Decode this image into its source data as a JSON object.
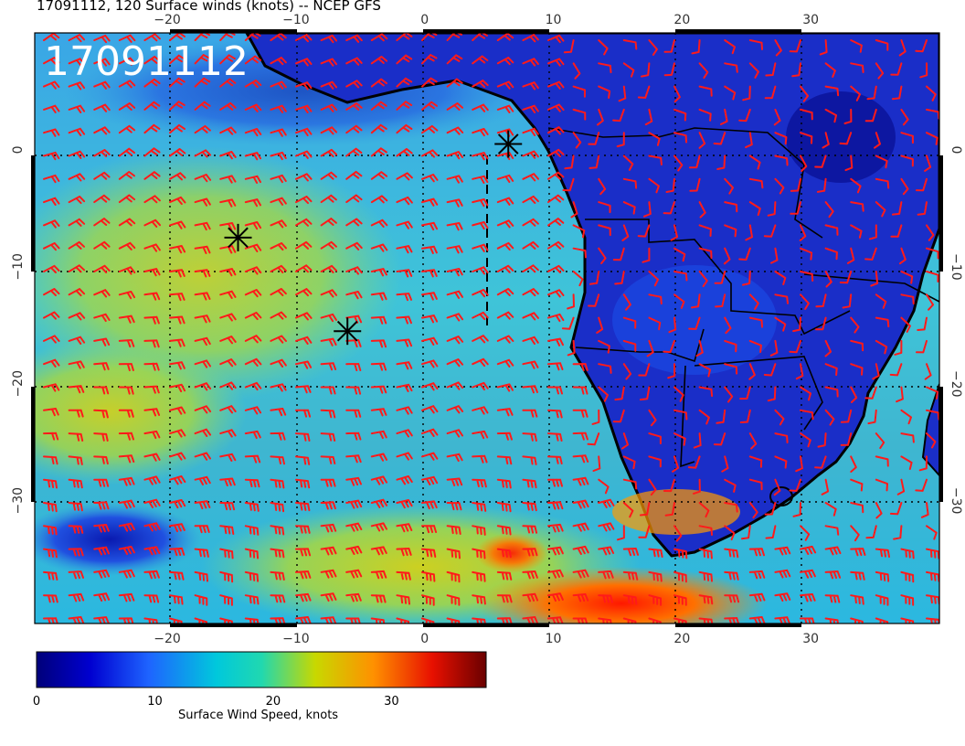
{
  "title": "17091112, 120 Surface winds (knots) -- NCEP GFS",
  "stamp": "17091112",
  "axes": {
    "lon_ticks": [
      "−20",
      "−10",
      "0",
      "10",
      "20",
      "30"
    ],
    "lon_values": [
      -20,
      -10,
      0,
      10,
      20,
      30
    ],
    "lat_ticks": [
      "0",
      "−10",
      "−20",
      "−30"
    ],
    "lat_values": [
      0,
      -10,
      -20,
      -30
    ],
    "lon_range": [
      -30.3,
      40
    ],
    "lat_range": [
      10,
      -40.5
    ]
  },
  "colorbar": {
    "title": "Surface Wind Speed, knots",
    "tick_labels": [
      "0",
      "10",
      "20",
      "30"
    ],
    "tick_values": [
      0,
      10,
      20,
      30
    ],
    "range": [
      0,
      38
    ],
    "colors": [
      "#00007a",
      "#0000d0",
      "#1e64ff",
      "#00c8dc",
      "#20d8b0",
      "#c8d800",
      "#ff9000",
      "#e81000",
      "#6a0000"
    ]
  },
  "markers": [
    {
      "name": "star-marker-1",
      "lon": 6.5,
      "lat": 0.5
    },
    {
      "name": "star-marker-2",
      "lon": -14.5,
      "lat": -7.5
    },
    {
      "name": "star-marker-3",
      "lon": -6.0,
      "lat": -15.5
    }
  ],
  "colors": {
    "ocean_base": "#2a9bd6",
    "land_base": "#1626c8",
    "barb": "#ff1a1a",
    "coast": "#000000"
  }
}
